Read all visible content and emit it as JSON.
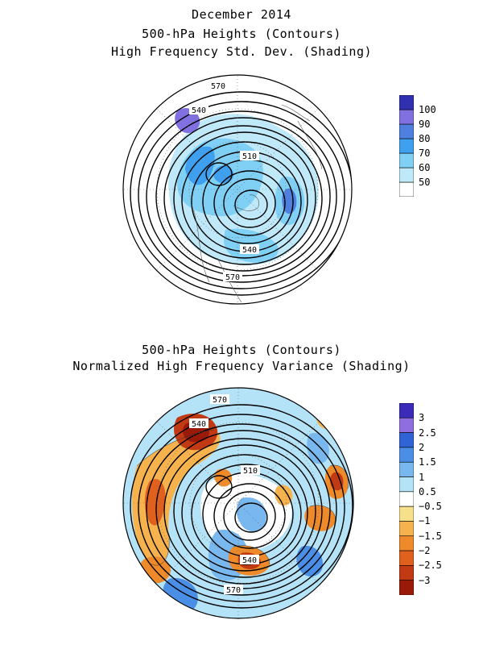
{
  "top_panel": {
    "title_lines": [
      "December 2014",
      "500-hPa Heights (Contours)",
      "High Frequency Std. Dev. (Shading)"
    ],
    "contour_labels": [
      "570",
      "540",
      "510",
      "540",
      "570"
    ],
    "colorbar": {
      "colors": [
        "#ffffff",
        "#bfe9f9",
        "#7fd0f4",
        "#3fa0f0",
        "#4f80e0",
        "#8070e0",
        "#3030b0"
      ],
      "labels": [
        "50",
        "60",
        "70",
        "80",
        "90",
        "100"
      ]
    }
  },
  "bottom_panel": {
    "title_lines": [
      "500-hPa Heights (Contours)",
      "Normalized High Frequency Variance (Shading)"
    ],
    "contour_labels": [
      "570",
      "540",
      "510",
      "540",
      "570"
    ],
    "colorbar": {
      "colors": [
        "#3a2bb8",
        "#8f6fe0",
        "#2f63d6",
        "#4a8ee6",
        "#79b8ef",
        "#b4e2f6",
        "#ffffff",
        "#f7e08a",
        "#f6b24d",
        "#ee8a2a",
        "#e0601e",
        "#c23a14",
        "#9a1a0a"
      ],
      "labels": [
        "3",
        "2.5",
        "2",
        "1.5",
        "1",
        "0.5",
        "−0.5",
        "−1",
        "−1.5",
        "−2",
        "−2.5",
        "−3"
      ]
    }
  }
}
